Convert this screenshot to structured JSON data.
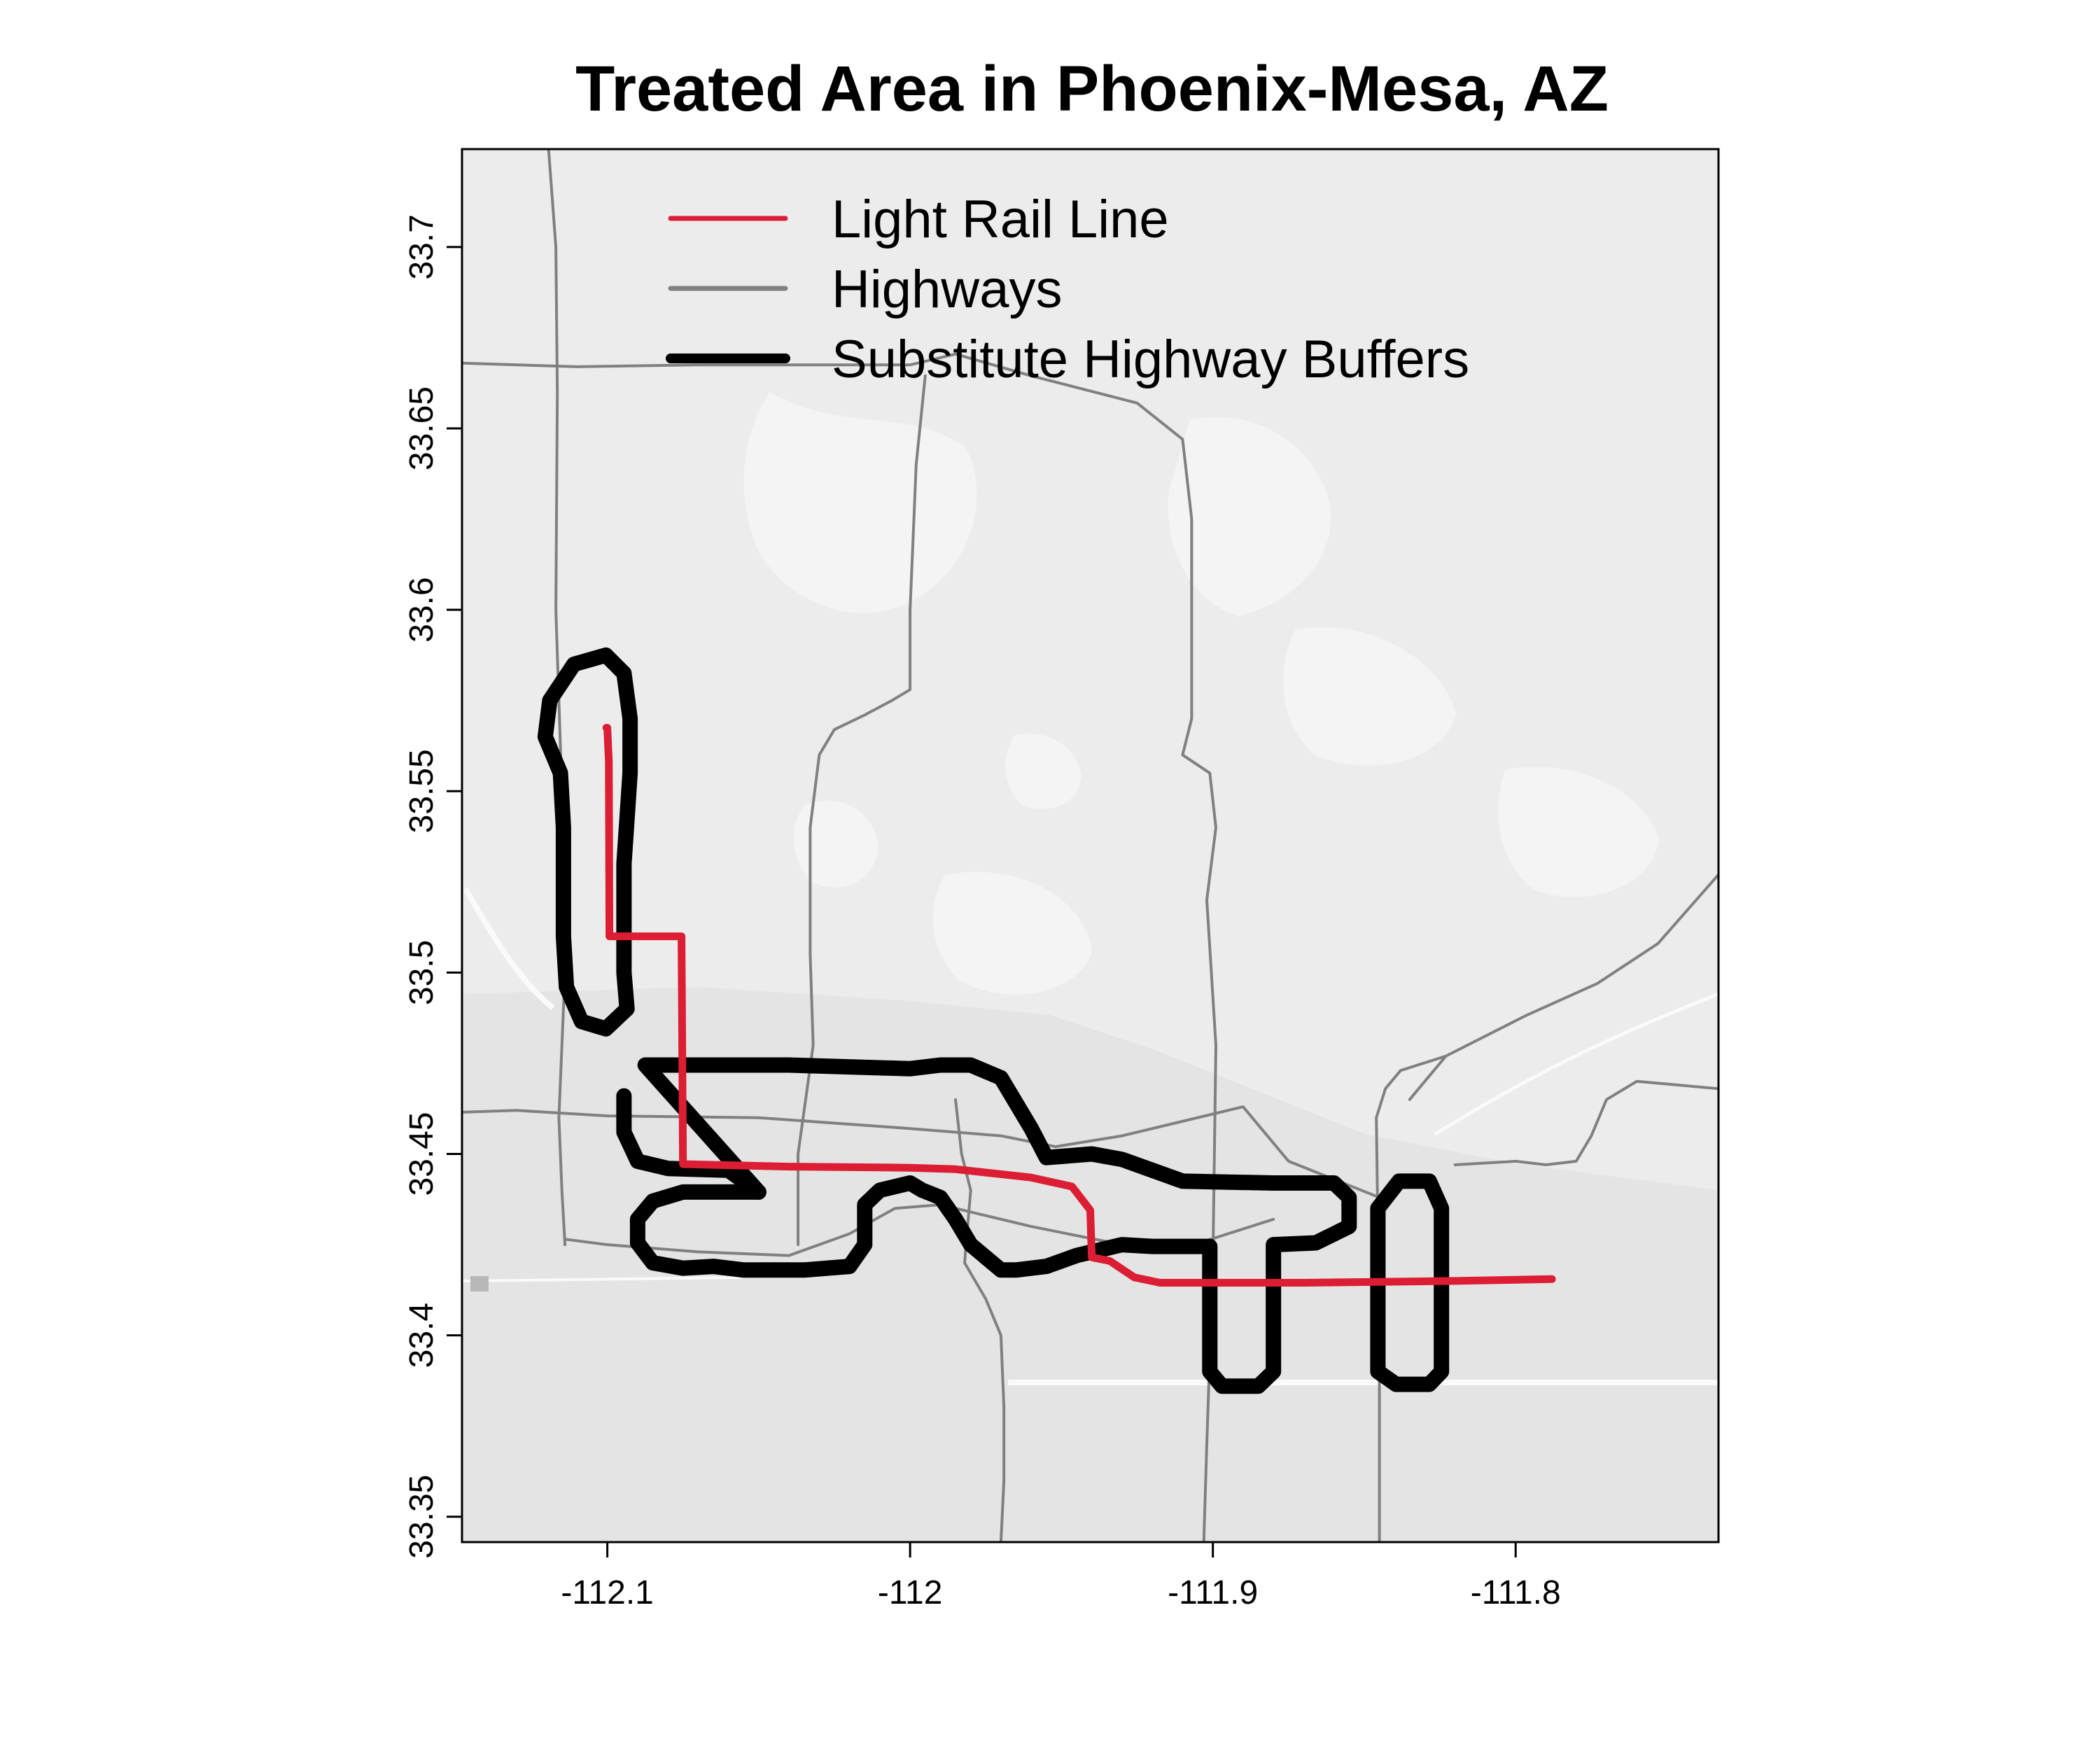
{
  "title": "Treated Area in Phoenix-Mesa, AZ",
  "colors": {
    "map_background": "#ececec",
    "light_rail": "#dc1e34",
    "highways": "#808080",
    "buffers": "#000000"
  },
  "legend": {
    "position": "top",
    "entries": [
      {
        "label": "Light Rail Line",
        "color": "#dc1e34"
      },
      {
        "label": "Highways",
        "color": "#808080"
      },
      {
        "label": "Substitute Highway Buffers",
        "color": "#000000"
      }
    ]
  },
  "axes": {
    "x_range": [
      -112.148,
      -111.733
    ],
    "y_range": [
      33.343,
      33.727
    ],
    "x_ticks": [
      {
        "value": -112.1,
        "label": "-112.1"
      },
      {
        "value": -112.0,
        "label": "-112"
      },
      {
        "value": -111.9,
        "label": "-111.9"
      },
      {
        "value": -111.8,
        "label": "-111.8"
      }
    ],
    "y_ticks": [
      {
        "value": 33.35,
        "label": "33.35"
      },
      {
        "value": 33.4,
        "label": "33.4"
      },
      {
        "value": 33.45,
        "label": "33.45"
      },
      {
        "value": 33.5,
        "label": "33.5"
      },
      {
        "value": 33.55,
        "label": "33.55"
      },
      {
        "value": 33.6,
        "label": "33.6"
      },
      {
        "value": 33.65,
        "label": "33.65"
      },
      {
        "value": 33.7,
        "label": "33.7"
      }
    ]
  },
  "light_rail": [
    [
      -112.1003,
      33.5675
    ],
    [
      -112.1,
      33.5675
    ],
    [
      -112.0995,
      33.558
    ],
    [
      -112.0993,
      33.51
    ],
    [
      -112.0755,
      33.51
    ],
    [
      -112.075,
      33.4472
    ],
    [
      -112.04,
      33.4465
    ],
    [
      -112.0,
      33.4462
    ],
    [
      -111.985,
      33.4458
    ],
    [
      -111.96,
      33.4435
    ],
    [
      -111.9465,
      33.441
    ],
    [
      -111.9405,
      33.4345
    ],
    [
      -111.94,
      33.4215
    ],
    [
      -111.934,
      33.4205
    ],
    [
      -111.926,
      33.416
    ],
    [
      -111.9175,
      33.4145
    ],
    [
      -111.87,
      33.4145
    ],
    [
      -111.82,
      33.415
    ],
    [
      -111.788,
      33.4155
    ]
  ],
  "highways": [
    [
      [
        -112.1195,
        33.728
      ],
      [
        -112.117,
        33.7
      ],
      [
        -112.1165,
        33.66
      ],
      [
        -112.117,
        33.6
      ],
      [
        -112.115,
        33.55
      ],
      [
        -112.114,
        33.5
      ],
      [
        -112.116,
        33.46
      ],
      [
        -112.115,
        33.44
      ],
      [
        -112.114,
        33.425
      ]
    ],
    [
      [
        -112.148,
        33.668
      ],
      [
        -112.11,
        33.667
      ],
      [
        -112.07,
        33.6675
      ],
      [
        -112.0,
        33.6675
      ],
      [
        -111.985,
        33.6705
      ],
      [
        -111.96,
        33.6645
      ],
      [
        -111.925,
        33.657
      ],
      [
        -111.91,
        33.647
      ],
      [
        -111.907,
        33.625
      ],
      [
        -111.907,
        33.57
      ],
      [
        -111.91,
        33.56
      ],
      [
        -111.901,
        33.555
      ],
      [
        -111.899,
        33.54
      ],
      [
        -111.902,
        33.52
      ],
      [
        -111.899,
        33.48
      ],
      [
        -111.9,
        33.42
      ],
      [
        -111.902,
        33.37
      ],
      [
        -111.903,
        33.343
      ]
    ],
    [
      [
        -111.995,
        33.6645
      ],
      [
        -111.998,
        33.64
      ],
      [
        -111.999,
        33.62
      ],
      [
        -112.0,
        33.6
      ],
      [
        -112.0,
        33.578
      ],
      [
        -112.006,
        33.575
      ],
      [
        -112.015,
        33.571
      ],
      [
        -112.025,
        33.567
      ],
      [
        -112.03,
        33.56
      ],
      [
        -112.033,
        33.54
      ],
      [
        -112.033,
        33.505
      ],
      [
        -112.032,
        33.48
      ],
      [
        -112.034,
        33.468
      ],
      [
        -112.037,
        33.45
      ],
      [
        -112.037,
        33.425
      ]
    ],
    [
      [
        -112.148,
        33.4615
      ],
      [
        -112.13,
        33.462
      ],
      [
        -112.1,
        33.4605
      ],
      [
        -112.05,
        33.46
      ],
      [
        -112.0,
        33.457
      ],
      [
        -111.97,
        33.455
      ],
      [
        -111.952,
        33.452
      ]
    ],
    [
      [
        -112.114,
        33.4265
      ],
      [
        -112.1,
        33.425
      ],
      [
        -112.07,
        33.423
      ],
      [
        -112.04,
        33.422
      ],
      [
        -112.02,
        33.428
      ],
      [
        -112.005,
        33.435
      ],
      [
        -111.99,
        33.436
      ],
      [
        -111.975,
        33.433
      ],
      [
        -111.96,
        33.43
      ],
      [
        -111.93,
        33.425
      ],
      [
        -111.91,
        33.424
      ],
      [
        -111.895,
        33.428
      ],
      [
        -111.88,
        33.432
      ]
    ],
    [
      [
        -111.98,
        33.44
      ],
      [
        -111.982,
        33.42
      ],
      [
        -111.975,
        33.41
      ],
      [
        -111.97,
        33.4
      ],
      [
        -111.969,
        33.38
      ],
      [
        -111.969,
        33.36
      ],
      [
        -111.97,
        33.343
      ]
    ],
    [
      [
        -111.98,
        33.44
      ],
      [
        -111.983,
        33.45
      ],
      [
        -111.985,
        33.465
      ]
    ],
    [
      [
        -111.845,
        33.343
      ],
      [
        -111.845,
        33.4
      ],
      [
        -111.846,
        33.46
      ],
      [
        -111.843,
        33.468
      ],
      [
        -111.838,
        33.473
      ],
      [
        -111.823,
        33.477
      ],
      [
        -111.797,
        33.488
      ],
      [
        -111.773,
        33.497
      ],
      [
        -111.753,
        33.508
      ],
      [
        -111.733,
        33.527
      ]
    ],
    [
      [
        -111.952,
        33.452
      ],
      [
        -111.93,
        33.455
      ],
      [
        -111.915,
        33.458
      ],
      [
        -111.89,
        33.463
      ],
      [
        -111.875,
        33.448
      ],
      [
        -111.86,
        33.443
      ],
      [
        -111.845,
        33.438
      ]
    ],
    [
      [
        -111.823,
        33.477
      ],
      [
        -111.83,
        33.47
      ],
      [
        -111.835,
        33.465
      ]
    ],
    [
      [
        -111.733,
        33.468
      ],
      [
        -111.76,
        33.47
      ],
      [
        -111.77,
        33.465
      ],
      [
        -111.775,
        33.455
      ],
      [
        -111.78,
        33.448
      ],
      [
        -111.79,
        33.447
      ],
      [
        -111.8,
        33.448
      ],
      [
        -111.82,
        33.447
      ]
    ]
  ],
  "buffers": [
    [
      [
        -112.1005,
        33.5875
      ],
      [
        -112.0945,
        33.5825
      ],
      [
        -112.0925,
        33.57
      ],
      [
        -112.0925,
        33.555
      ],
      [
        -112.0945,
        33.53
      ],
      [
        -112.0945,
        33.5
      ],
      [
        -112.0935,
        33.49
      ],
      [
        -112.1005,
        33.4845
      ],
      [
        -112.1085,
        33.4865
      ],
      [
        -112.1135,
        33.496
      ],
      [
        -112.1145,
        33.51
      ],
      [
        -112.1145,
        33.54
      ],
      [
        -112.1155,
        33.555
      ],
      [
        -112.1205,
        33.565
      ],
      [
        -112.119,
        33.575
      ],
      [
        -112.111,
        33.585
      ]
    ],
    [
      [
        -112.0875,
        33.4745
      ],
      [
        -112.04,
        33.4745
      ],
      [
        -112.0,
        33.4735
      ],
      [
        -111.99,
        33.4745
      ],
      [
        -111.98,
        33.4745
      ],
      [
        -111.97,
        33.471
      ],
      [
        -111.96,
        33.457
      ],
      [
        -111.955,
        33.449
      ],
      [
        -111.94,
        33.45
      ],
      [
        -111.93,
        33.4485
      ],
      [
        -111.91,
        33.4425
      ],
      [
        -111.88,
        33.442
      ],
      [
        -111.86,
        33.442
      ],
      [
        -111.855,
        33.438
      ],
      [
        -111.855,
        33.43
      ],
      [
        -111.866,
        33.4255
      ],
      [
        -111.88,
        33.425
      ],
      [
        -111.88,
        33.39
      ],
      [
        -111.885,
        33.386
      ],
      [
        -111.897,
        33.386
      ],
      [
        -111.901,
        33.39
      ],
      [
        -111.901,
        33.4245
      ],
      [
        -111.91,
        33.4245
      ],
      [
        -111.92,
        33.4245
      ],
      [
        -111.93,
        33.425
      ],
      [
        -111.945,
        33.422
      ],
      [
        -111.955,
        33.419
      ],
      [
        -111.965,
        33.418
      ],
      [
        -111.97,
        33.418
      ],
      [
        -111.98,
        33.425
      ],
      [
        -111.985,
        33.432
      ],
      [
        -111.99,
        33.438
      ],
      [
        -111.996,
        33.44
      ],
      [
        -112.0,
        33.442
      ],
      [
        -112.01,
        33.44
      ],
      [
        -112.015,
        33.436
      ],
      [
        -112.015,
        33.425
      ],
      [
        -112.02,
        33.419
      ],
      [
        -112.035,
        33.418
      ],
      [
        -112.055,
        33.418
      ],
      [
        -112.065,
        33.419
      ],
      [
        -112.075,
        33.4185
      ],
      [
        -112.085,
        33.42
      ],
      [
        -112.09,
        33.4255
      ],
      [
        -112.09,
        33.432
      ],
      [
        -112.085,
        33.437
      ],
      [
        -112.075,
        33.4395
      ],
      [
        -112.05,
        33.4395
      ]
    ],
    [
      [
        -112.05,
        33.4395
      ],
      [
        -112.06,
        33.4455
      ],
      [
        -112.08,
        33.446
      ],
      [
        -112.09,
        33.448
      ],
      [
        -112.0945,
        33.456
      ],
      [
        -112.0945,
        33.466
      ]
    ],
    [
      [
        -111.8385,
        33.4425
      ],
      [
        -111.8285,
        33.4425
      ],
      [
        -111.8245,
        33.435
      ],
      [
        -111.8245,
        33.39
      ],
      [
        -111.8285,
        33.3865
      ],
      [
        -111.8395,
        33.3865
      ],
      [
        -111.8455,
        33.39
      ],
      [
        -111.8455,
        33.435
      ]
    ]
  ]
}
